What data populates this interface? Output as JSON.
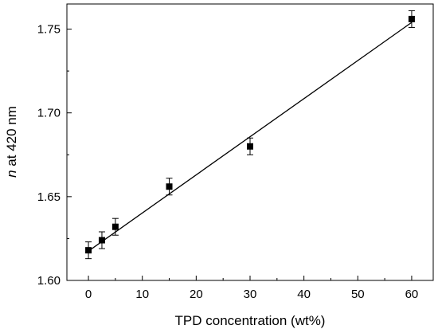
{
  "chart_data": {
    "type": "scatter",
    "xlabel": "TPD concentration (wt%)",
    "ylabel_italic": "n",
    "ylabel_rest": " at 420 nm",
    "xlim": [
      -4,
      64
    ],
    "ylim": [
      1.6,
      1.765
    ],
    "xticks": [
      0,
      10,
      20,
      30,
      40,
      50,
      60
    ],
    "xtick_labels": [
      "0",
      "10",
      "20",
      "30",
      "40",
      "50",
      "60"
    ],
    "yticks": [
      1.6,
      1.65,
      1.7,
      1.75
    ],
    "ytick_labels": [
      "1.60",
      "1.65",
      "1.70",
      "1.75"
    ],
    "series": [
      {
        "marker": "square",
        "x": [
          0,
          2.5,
          5,
          15,
          30,
          60
        ],
        "y": [
          1.618,
          1.624,
          1.632,
          1.656,
          1.68,
          1.756
        ],
        "yerr": [
          0.005,
          0.005,
          0.005,
          0.005,
          0.005,
          0.005
        ]
      }
    ],
    "fit_line": {
      "x": [
        0,
        60
      ],
      "y": [
        1.6175,
        1.754
      ]
    },
    "grid": false,
    "color": "#000000"
  }
}
